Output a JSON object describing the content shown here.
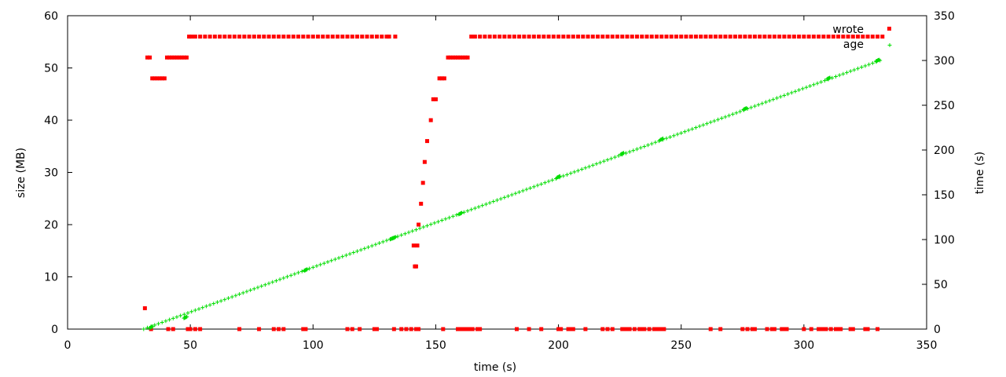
{
  "chart_data": {
    "type": "scatter",
    "title": "",
    "xlabel": "time (s)",
    "ylabel": "size (MB)",
    "y2label": "time (s)",
    "xlim": [
      0,
      350
    ],
    "ylim": [
      0,
      60
    ],
    "y2lim": [
      0,
      350
    ],
    "xticks": [
      "0",
      "50",
      "100",
      "150",
      "200",
      "250",
      "300",
      "350"
    ],
    "yticks": [
      "0",
      "10",
      "20",
      "30",
      "40",
      "50",
      "60"
    ],
    "y2ticks": [
      "0",
      "50",
      "100",
      "150",
      "200",
      "250",
      "300",
      "350"
    ],
    "grid": false,
    "legend_position": "top-right",
    "series": [
      {
        "name": "wrote",
        "axis": "y",
        "color": "#ff0000",
        "marker": "square",
        "points": [
          [
            31.5,
            4
          ],
          [
            32.5,
            52
          ],
          [
            33.5,
            52
          ],
          [
            34.5,
            48
          ],
          [
            35.5,
            48
          ],
          [
            36.5,
            48
          ],
          [
            37.5,
            48
          ],
          [
            38.5,
            48
          ],
          [
            39.5,
            48
          ],
          [
            40.5,
            52
          ],
          [
            41.5,
            52
          ],
          [
            42.5,
            52
          ],
          [
            43.5,
            52
          ],
          [
            44.5,
            52
          ],
          [
            45.5,
            52
          ],
          [
            46.5,
            52
          ],
          [
            47.5,
            52
          ],
          [
            48.5,
            52
          ],
          [
            49.5,
            56
          ],
          [
            50.5,
            56
          ],
          [
            52,
            56
          ],
          [
            54,
            56
          ],
          [
            56,
            56
          ],
          [
            58,
            56
          ],
          [
            60,
            56
          ],
          [
            62,
            56
          ],
          [
            64,
            56
          ],
          [
            66,
            56
          ],
          [
            68,
            56
          ],
          [
            70,
            56
          ],
          [
            72,
            56
          ],
          [
            74,
            56
          ],
          [
            76,
            56
          ],
          [
            78,
            56
          ],
          [
            80,
            56
          ],
          [
            82,
            56
          ],
          [
            84,
            56
          ],
          [
            86,
            56
          ],
          [
            88,
            56
          ],
          [
            90,
            56
          ],
          [
            92,
            56
          ],
          [
            94,
            56
          ],
          [
            96,
            56
          ],
          [
            98,
            56
          ],
          [
            100,
            56
          ],
          [
            102,
            56
          ],
          [
            104,
            56
          ],
          [
            106,
            56
          ],
          [
            108,
            56
          ],
          [
            110,
            56
          ],
          [
            112,
            56
          ],
          [
            114,
            56
          ],
          [
            116,
            56
          ],
          [
            118,
            56
          ],
          [
            120,
            56
          ],
          [
            122,
            56
          ],
          [
            124,
            56
          ],
          [
            126,
            56
          ],
          [
            128,
            56
          ],
          [
            130,
            56
          ],
          [
            131,
            56
          ],
          [
            133.5,
            56
          ],
          [
            141,
            16
          ],
          [
            141.5,
            12
          ],
          [
            142,
            12
          ],
          [
            142.5,
            16
          ],
          [
            143,
            20
          ],
          [
            144,
            24
          ],
          [
            144.8,
            28
          ],
          [
            145.5,
            32
          ],
          [
            146.5,
            36
          ],
          [
            148,
            40
          ],
          [
            149,
            44
          ],
          [
            150,
            44
          ],
          [
            151.5,
            48
          ],
          [
            152.5,
            48
          ],
          [
            153.5,
            48
          ],
          [
            155,
            52
          ],
          [
            156,
            52
          ],
          [
            157,
            52
          ],
          [
            158,
            52
          ],
          [
            159,
            52
          ],
          [
            160,
            52
          ],
          [
            161,
            52
          ],
          [
            162,
            52
          ],
          [
            163,
            52
          ],
          [
            164.5,
            56
          ],
          [
            166,
            56
          ],
          [
            168,
            56
          ],
          [
            170,
            56
          ],
          [
            172,
            56
          ],
          [
            174,
            56
          ],
          [
            176,
            56
          ],
          [
            178,
            56
          ],
          [
            180,
            56
          ],
          [
            182,
            56
          ],
          [
            184,
            56
          ],
          [
            186,
            56
          ],
          [
            188,
            56
          ],
          [
            190,
            56
          ],
          [
            192,
            56
          ],
          [
            194,
            56
          ],
          [
            196,
            56
          ],
          [
            198,
            56
          ],
          [
            200,
            56
          ],
          [
            202,
            56
          ],
          [
            204,
            56
          ],
          [
            206,
            56
          ],
          [
            208,
            56
          ],
          [
            210,
            56
          ],
          [
            212,
            56
          ],
          [
            214,
            56
          ],
          [
            216,
            56
          ],
          [
            218,
            56
          ],
          [
            220,
            56
          ],
          [
            222,
            56
          ],
          [
            224,
            56
          ],
          [
            226,
            56
          ],
          [
            228,
            56
          ],
          [
            230,
            56
          ],
          [
            232,
            56
          ],
          [
            234,
            56
          ],
          [
            236,
            56
          ],
          [
            238,
            56
          ],
          [
            240,
            56
          ],
          [
            242,
            56
          ],
          [
            244,
            56
          ],
          [
            246,
            56
          ],
          [
            248,
            56
          ],
          [
            250,
            56
          ],
          [
            252,
            56
          ],
          [
            254,
            56
          ],
          [
            256,
            56
          ],
          [
            258,
            56
          ],
          [
            260,
            56
          ],
          [
            262,
            56
          ],
          [
            264,
            56
          ],
          [
            266,
            56
          ],
          [
            268,
            56
          ],
          [
            270,
            56
          ],
          [
            272,
            56
          ],
          [
            274,
            56
          ],
          [
            276,
            56
          ],
          [
            278,
            56
          ],
          [
            280,
            56
          ],
          [
            282,
            56
          ],
          [
            284,
            56
          ],
          [
            286,
            56
          ],
          [
            288,
            56
          ],
          [
            290,
            56
          ],
          [
            292,
            56
          ],
          [
            294,
            56
          ],
          [
            296,
            56
          ],
          [
            298,
            56
          ],
          [
            300,
            56
          ],
          [
            302,
            56
          ],
          [
            304,
            56
          ],
          [
            306,
            56
          ],
          [
            308,
            56
          ],
          [
            310,
            56
          ],
          [
            312,
            56
          ],
          [
            314,
            56
          ],
          [
            316,
            56
          ],
          [
            318,
            56
          ],
          [
            320,
            56
          ],
          [
            322,
            56
          ],
          [
            324,
            56
          ],
          [
            326,
            56
          ],
          [
            328,
            56
          ],
          [
            330,
            56
          ],
          [
            332,
            56
          ],
          [
            34,
            0
          ],
          [
            41,
            0
          ],
          [
            43,
            0
          ],
          [
            49,
            0
          ],
          [
            50,
            0
          ],
          [
            52,
            0
          ],
          [
            54,
            0
          ],
          [
            70,
            0
          ],
          [
            78,
            0
          ],
          [
            84,
            0
          ],
          [
            86,
            0
          ],
          [
            88,
            0
          ],
          [
            96,
            0
          ],
          [
            97,
            0
          ],
          [
            114,
            0
          ],
          [
            116,
            0
          ],
          [
            119,
            0
          ],
          [
            125,
            0
          ],
          [
            126,
            0
          ],
          [
            133,
            0
          ],
          [
            136,
            0
          ],
          [
            138,
            0
          ],
          [
            140,
            0
          ],
          [
            142,
            0
          ],
          [
            143,
            0
          ],
          [
            153,
            0
          ],
          [
            159,
            0
          ],
          [
            160,
            0
          ],
          [
            161,
            0
          ],
          [
            162,
            0
          ],
          [
            163,
            0
          ],
          [
            164,
            0
          ],
          [
            165,
            0
          ],
          [
            167,
            0
          ],
          [
            168,
            0
          ],
          [
            183,
            0
          ],
          [
            188,
            0
          ],
          [
            193,
            0
          ],
          [
            200,
            0
          ],
          [
            201,
            0
          ],
          [
            204,
            0
          ],
          [
            205,
            0
          ],
          [
            206,
            0
          ],
          [
            211,
            0
          ],
          [
            218,
            0
          ],
          [
            220,
            0
          ],
          [
            222,
            0
          ],
          [
            226,
            0
          ],
          [
            227,
            0
          ],
          [
            228,
            0
          ],
          [
            229,
            0
          ],
          [
            231,
            0
          ],
          [
            233,
            0
          ],
          [
            234,
            0
          ],
          [
            235,
            0
          ],
          [
            237,
            0
          ],
          [
            239,
            0
          ],
          [
            240,
            0
          ],
          [
            241,
            0
          ],
          [
            242,
            0
          ],
          [
            243,
            0
          ],
          [
            262,
            0
          ],
          [
            266,
            0
          ],
          [
            275,
            0
          ],
          [
            277,
            0
          ],
          [
            279,
            0
          ],
          [
            280,
            0
          ],
          [
            285,
            0
          ],
          [
            287,
            0
          ],
          [
            288,
            0
          ],
          [
            291,
            0
          ],
          [
            292,
            0
          ],
          [
            293,
            0
          ],
          [
            300,
            0
          ],
          [
            303,
            0
          ],
          [
            306,
            0
          ],
          [
            307,
            0
          ],
          [
            308,
            0
          ],
          [
            309,
            0
          ],
          [
            311,
            0
          ],
          [
            313,
            0
          ],
          [
            314,
            0
          ],
          [
            315,
            0
          ],
          [
            319,
            0
          ],
          [
            320,
            0
          ],
          [
            325,
            0
          ],
          [
            326,
            0
          ],
          [
            330,
            0
          ]
        ]
      },
      {
        "name": "age",
        "axis": "y2",
        "color": "#00dd00",
        "marker": "plus",
        "start": [
          31,
          0
        ],
        "end": [
          332,
          301
        ],
        "step": 1.5,
        "clusters": [
          [
            34,
            2
          ],
          [
            48,
            13
          ],
          [
            97,
            66
          ],
          [
            132,
            101
          ],
          [
            133,
            102
          ],
          [
            160,
            129
          ],
          [
            200,
            170
          ],
          [
            226,
            196
          ],
          [
            242,
            212
          ],
          [
            276,
            246
          ],
          [
            310,
            280
          ],
          [
            330,
            300
          ]
        ]
      }
    ]
  }
}
